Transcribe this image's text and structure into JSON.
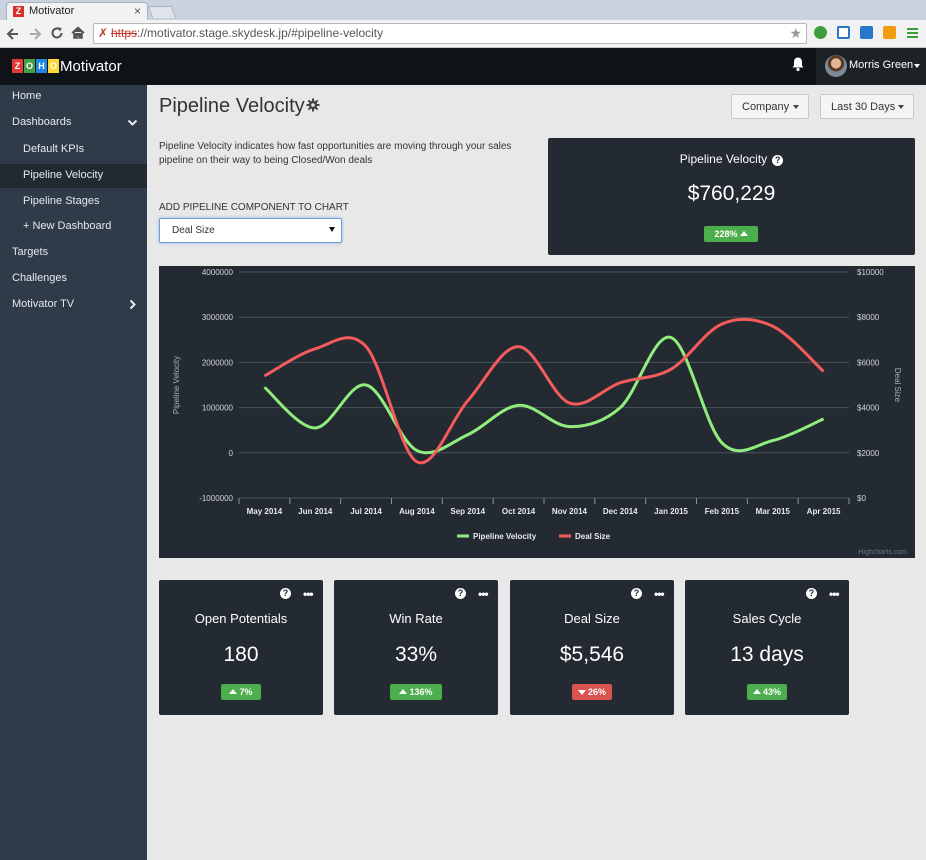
{
  "browser": {
    "tab_title": "Motivator",
    "tab_close": "×",
    "url_protocol": "https",
    "url_rest": "://motivator.stage.skydesk.jp/#pipeline-velocity"
  },
  "header": {
    "logo_letters": [
      "Z",
      "O",
      "H",
      "O"
    ],
    "logo_colors": [
      "#e53935",
      "#43a047",
      "#1e88e5",
      "#fdd835"
    ],
    "app_name": "Motivator",
    "user_name": "Morris Green"
  },
  "sidebar": {
    "items": [
      {
        "label": "Home"
      },
      {
        "label": "Dashboards"
      },
      {
        "label": "Default KPIs"
      },
      {
        "label": "Pipeline Velocity"
      },
      {
        "label": "Pipeline Stages"
      },
      {
        "label": "+ New Dashboard"
      },
      {
        "label": "Targets"
      },
      {
        "label": "Challenges"
      },
      {
        "label": "Motivator TV"
      }
    ]
  },
  "page": {
    "title": "Pipeline Velocity",
    "company_dropdown": "Company",
    "period_dropdown": "Last 30 Days",
    "description": "Pipeline Velocity indicates how fast opportunities are moving through your sales pipeline on their way to being Closed/Won deals",
    "add_component_label": "ADD PIPELINE COMPONENT TO CHART",
    "component_select": "Deal Size"
  },
  "velocity_card": {
    "title": "Pipeline Velocity",
    "help": "?",
    "value": "$760,229",
    "change": "228%",
    "direction": "up"
  },
  "chart_data": {
    "type": "line",
    "categories": [
      "May 2014",
      "Jun 2014",
      "Jul 2014",
      "Aug 2014",
      "Sep 2014",
      "Oct 2014",
      "Nov 2014",
      "Dec 2014",
      "Jan 2015",
      "Feb 2015",
      "Mar 2015",
      "Apr 2015"
    ],
    "y_left": {
      "label": "Pipeline Velocity",
      "ticks": [
        "-1000000",
        "0",
        "1000000",
        "2000000",
        "3000000",
        "4000000"
      ],
      "range": [
        -1000000,
        4000000
      ]
    },
    "y_right": {
      "label": "Deal Size",
      "ticks": [
        "$0",
        "$2000",
        "$4000",
        "$6000",
        "$8000",
        "$10000"
      ],
      "range": [
        0,
        10000
      ]
    },
    "series": [
      {
        "name": "Pipeline Velocity",
        "axis": "left",
        "color": "#90ed7d",
        "values": [
          1450000,
          550000,
          1500000,
          50000,
          400000,
          1050000,
          580000,
          1000000,
          2550000,
          220000,
          270000,
          750000
        ]
      },
      {
        "name": "Deal Size",
        "axis": "right",
        "color": "#f45b5b",
        "values": [
          5400,
          6600,
          6700,
          1600,
          4300,
          6700,
          4200,
          5100,
          5700,
          7700,
          7600,
          5600
        ]
      }
    ],
    "credit": "Highcharts.com",
    "legend_position": "bottom-center",
    "grid": true
  },
  "tiles": [
    {
      "title": "Open Potentials",
      "value": "180",
      "change": "7%",
      "direction": "up"
    },
    {
      "title": "Win Rate",
      "value": "33%",
      "change": "136%",
      "direction": "up"
    },
    {
      "title": "Deal Size",
      "value": "$5,546",
      "change": "26%",
      "direction": "down"
    },
    {
      "title": "Sales Cycle",
      "value": "13 days",
      "change": "43%",
      "direction": "up"
    }
  ],
  "tile_help": "?",
  "tile_more": "•••",
  "colors": {
    "accent_up": "#4cae4c",
    "accent_down": "#d9534f",
    "panel": "#232a32",
    "sidebar": "#2f3b48"
  }
}
